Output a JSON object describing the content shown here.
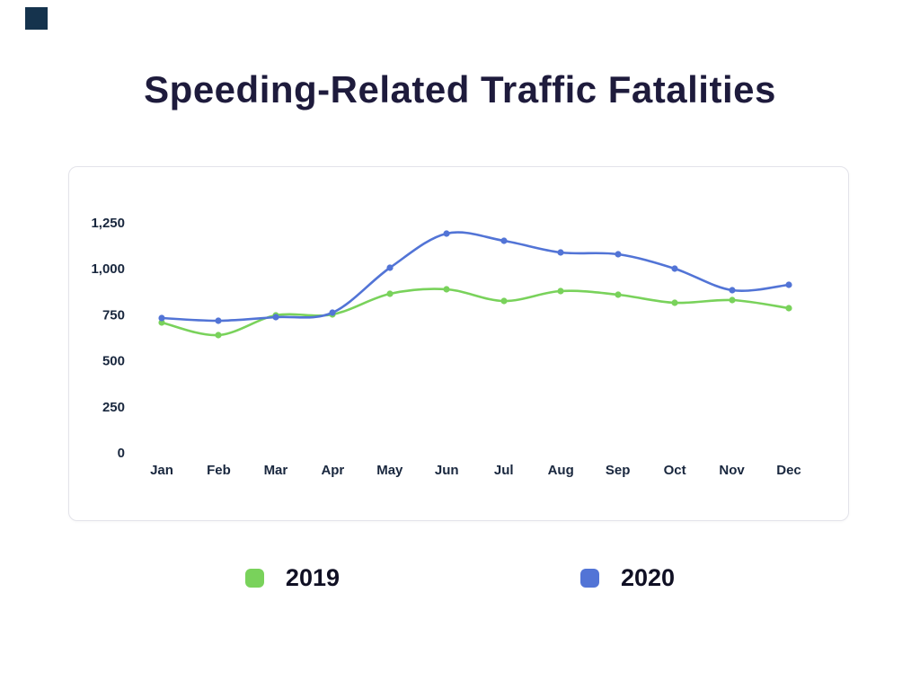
{
  "title": "Speeding-Related Traffic Fatalities",
  "chart_data": {
    "type": "line",
    "title": "Speeding-Related Traffic Fatalities",
    "xlabel": "",
    "ylabel": "",
    "categories": [
      "Jan",
      "Feb",
      "Mar",
      "Apr",
      "May",
      "Jun",
      "Jul",
      "Aug",
      "Sep",
      "Oct",
      "Nov",
      "Dec"
    ],
    "series": [
      {
        "name": "2019",
        "color": "#79d25b",
        "values": [
          710,
          640,
          745,
          750,
          865,
          890,
          825,
          880,
          860,
          815,
          830,
          785
        ]
      },
      {
        "name": "2020",
        "color": "#5274d6",
        "values": [
          730,
          720,
          735,
          760,
          1005,
          1190,
          1150,
          1090,
          1080,
          1000,
          885,
          915
        ]
      }
    ],
    "ylim": [
      0,
      1250
    ],
    "y_ticks": [
      {
        "v": 0,
        "label": "0"
      },
      {
        "v": 250,
        "label": "250"
      },
      {
        "v": 500,
        "label": "500"
      },
      {
        "v": 750,
        "label": "750"
      },
      {
        "v": 1000,
        "label": "1,000"
      },
      {
        "v": 1250,
        "label": "1,250"
      }
    ],
    "grid": false,
    "legend_position": "bottom"
  },
  "legend": {
    "items": [
      {
        "label": "2019",
        "color": "#79d25b"
      },
      {
        "label": "2020",
        "color": "#5274d6"
      }
    ]
  }
}
